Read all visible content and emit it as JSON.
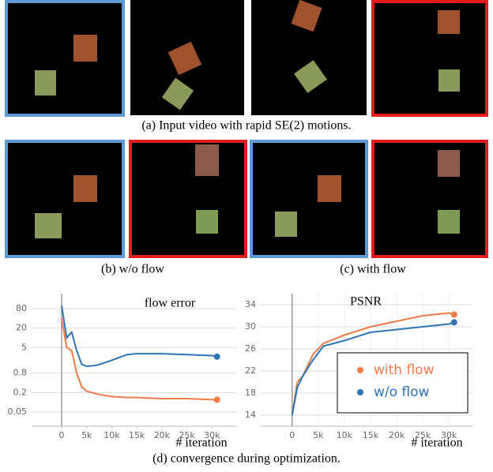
{
  "figure": {
    "caption_a": "(a) Input video with rapid SE(2) motions.",
    "caption_b": "(b) w/o flow",
    "caption_c": "(c) with flow",
    "caption_d": "(d) convergence during optimization."
  },
  "chart_data": [
    {
      "type": "line",
      "title": "flow error",
      "x_label": "# iteration",
      "log_y": true,
      "grid": true,
      "x": [
        0,
        1000,
        2000,
        3000,
        4000,
        5000,
        7000,
        10000,
        13000,
        15000,
        20000,
        25000,
        30000,
        31000
      ],
      "series": [
        {
          "color": "#f07b4a",
          "values": [
            40,
            5,
            4,
            0.8,
            0.3,
            0.22,
            0.18,
            0.15,
            0.14,
            0.14,
            0.13,
            0.13,
            0.12,
            0.12
          ]
        },
        {
          "color": "#2f75b5",
          "values": [
            100,
            10,
            15,
            4,
            1.5,
            1.3,
            1.4,
            2,
            3,
            3.2,
            3.2,
            3,
            2.8,
            2.6
          ]
        }
      ],
      "xlim": [
        -6000,
        35000
      ],
      "ylim": [
        0.018,
        235
      ],
      "xticks": [
        0,
        {
          "value": 5000,
          "label": "5k"
        },
        {
          "value": 10000,
          "label": "10k"
        },
        {
          "value": 15000,
          "label": "15k"
        },
        {
          "value": 20000,
          "label": "20k"
        },
        {
          "value": 25000,
          "label": "25k"
        },
        {
          "value": 30000,
          "label": "30k"
        }
      ],
      "yticks": [
        0.05,
        0.2,
        0.8,
        5,
        20,
        80
      ]
    },
    {
      "type": "line",
      "title": "PSNR",
      "x_label": "# iteration",
      "log_y": false,
      "grid": true,
      "x": [
        0,
        1000,
        2000,
        3000,
        4000,
        6000,
        10000,
        15000,
        20000,
        25000,
        30000,
        31000
      ],
      "series": [
        {
          "name": "with flow",
          "color": "#f07b4a",
          "values": [
            14,
            20,
            21,
            23,
            25,
            27,
            28.5,
            30,
            31,
            32,
            32.5,
            32.2
          ]
        },
        {
          "name": "w/o flow",
          "color": "#2f75b5",
          "values": [
            14,
            19,
            21,
            22.5,
            24,
            26.5,
            27.5,
            29,
            29.5,
            30,
            30.5,
            30.8
          ]
        }
      ],
      "xlim": [
        -6000,
        34500
      ],
      "ylim": [
        12,
        36
      ],
      "xticks": [
        0,
        {
          "value": 5000,
          "label": "5k"
        },
        {
          "value": 10000,
          "label": "10k"
        },
        {
          "value": 15000,
          "label": "15k"
        },
        {
          "value": 20000,
          "label": "20k"
        },
        {
          "value": 25000,
          "label": "25k"
        },
        {
          "value": 30000,
          "label": "30k"
        }
      ],
      "yticks": [
        14,
        18,
        22,
        26,
        30,
        34
      ],
      "legend": "lower right"
    }
  ]
}
